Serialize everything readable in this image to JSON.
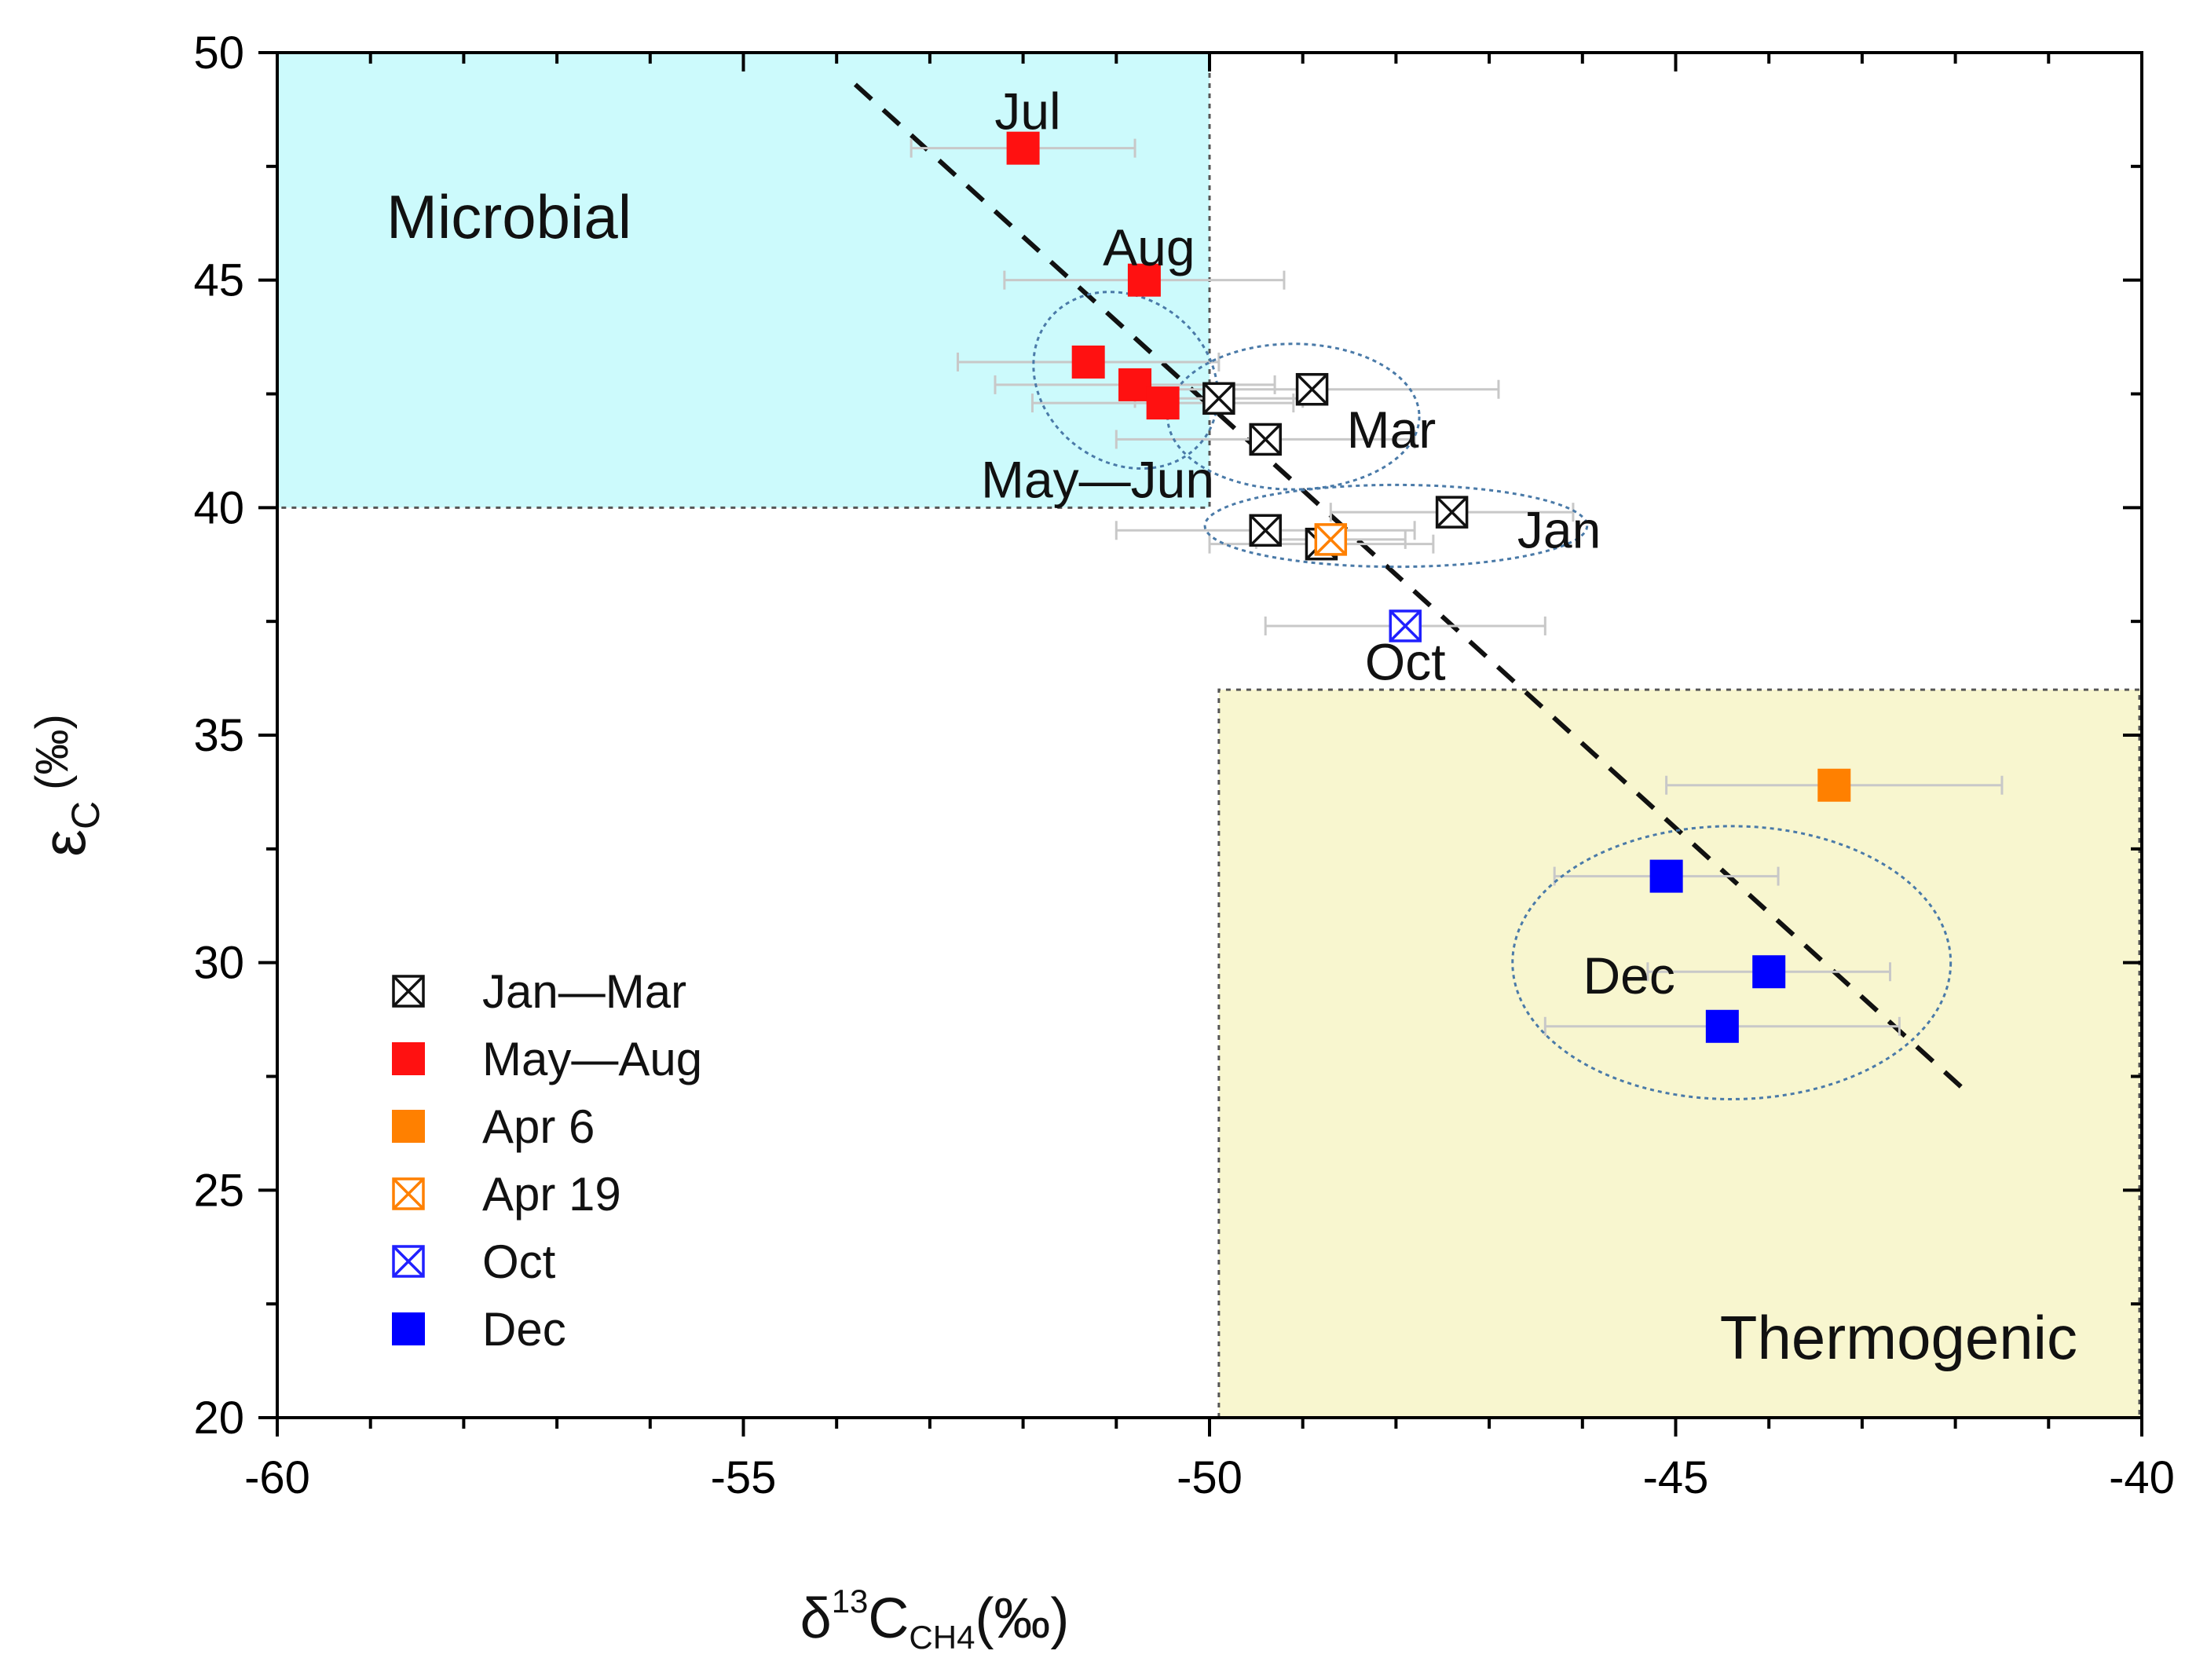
{
  "chart_data": {
    "type": "scatter",
    "title": "",
    "xlabel": {
      "prefix": "δ",
      "sup": "13",
      "main": "C",
      "sub": "CH4",
      "unit": "(‰)"
    },
    "ylabel": {
      "main": "ε",
      "sub": "C",
      "unit": "(‰)"
    },
    "xlim": [
      -60,
      -40
    ],
    "ylim": [
      20,
      50
    ],
    "xticks": [
      -60,
      -55,
      -50,
      -45,
      -40
    ],
    "yticks": [
      20,
      25,
      30,
      35,
      40,
      45,
      50
    ],
    "x_tick_labels": [
      "-60",
      "-55",
      "-50",
      "-45",
      "-40"
    ],
    "y_tick_labels": [
      "20",
      "25",
      "30",
      "35",
      "40",
      "45",
      "50"
    ],
    "regions": [
      {
        "name": "Microbial",
        "x_range": [
          -60,
          -50
        ],
        "y_range": [
          40,
          50
        ],
        "color": "#ccfafc"
      },
      {
        "name": "Thermogenic",
        "x_range": [
          -49.9,
          -40
        ],
        "y_range": [
          20,
          36
        ],
        "color": "#f8f6cf"
      }
    ],
    "trend_line": {
      "x": [
        -53.8,
        -41.9
      ],
      "y": [
        49.3,
        27.2
      ],
      "style": "dashed"
    },
    "series": [
      {
        "name": "Jan—Mar",
        "marker": "xbox",
        "color": "#111111",
        "points": [
          {
            "x": -49.9,
            "y": 42.4,
            "xerr": 0.9
          },
          {
            "x": -48.9,
            "y": 42.6,
            "xerr": 2.0
          },
          {
            "x": -49.4,
            "y": 41.5,
            "xerr": 1.6
          },
          {
            "x": -47.4,
            "y": 39.9,
            "xerr": 1.3
          },
          {
            "x": -49.4,
            "y": 39.5,
            "xerr": 1.6
          },
          {
            "x": -48.8,
            "y": 39.2,
            "xerr": 1.2
          }
        ]
      },
      {
        "name": "May—Aug",
        "marker": "square",
        "color": "#ff1111",
        "points": [
          {
            "x": -52.0,
            "y": 47.9,
            "xerr": 1.2
          },
          {
            "x": -50.7,
            "y": 45.0,
            "xerr": 1.5
          },
          {
            "x": -51.3,
            "y": 43.2,
            "xerr": 1.4
          },
          {
            "x": -50.8,
            "y": 42.7,
            "xerr": 1.5
          },
          {
            "x": -50.5,
            "y": 42.3,
            "xerr": 1.4
          }
        ]
      },
      {
        "name": "Apr 6",
        "marker": "square",
        "color": "#ff8000",
        "points": [
          {
            "x": -43.3,
            "y": 33.9,
            "xerr": 1.8
          }
        ]
      },
      {
        "name": "Apr 19",
        "marker": "xbox",
        "color": "#ff8000",
        "points": [
          {
            "x": -48.7,
            "y": 39.3,
            "xerr": 0.8
          }
        ]
      },
      {
        "name": "Oct",
        "marker": "xbox",
        "color": "#2020ff",
        "points": [
          {
            "x": -47.9,
            "y": 37.4,
            "xerr": 1.5
          }
        ]
      },
      {
        "name": "Dec",
        "marker": "square",
        "color": "#0000ff",
        "points": [
          {
            "x": -45.1,
            "y": 31.9,
            "xerr": 1.2
          },
          {
            "x": -44.0,
            "y": 29.8,
            "xerr": 1.3
          },
          {
            "x": -44.5,
            "y": 28.6,
            "xerr": 1.9
          }
        ]
      }
    ],
    "ellipses": [
      {
        "name": "May—Jun",
        "cx": -50.9,
        "cy": 42.8,
        "rx": 1.05,
        "ry": 1.8,
        "rotate": 38
      },
      {
        "name": "Mar",
        "cx": -49.1,
        "cy": 42.0,
        "rx": 1.35,
        "ry": 1.6
      },
      {
        "name": "Jan",
        "cx": -48.0,
        "cy": 39.6,
        "rx": 2.05,
        "ry": 0.9
      },
      {
        "name": "Dec",
        "cx": -44.4,
        "cy": 30.0,
        "rx": 2.35,
        "ry": 3.0
      }
    ],
    "annotations": [
      {
        "text": "Jul",
        "x": -51.95,
        "y": 48.7
      },
      {
        "text": "Aug",
        "x": -50.65,
        "y": 45.7
      },
      {
        "text": "May—Jun",
        "x": -51.2,
        "y": 40.6
      },
      {
        "text": "Mar",
        "x": -48.05,
        "y": 41.7
      },
      {
        "text": "Jan",
        "x": -46.25,
        "y": 39.5
      },
      {
        "text": "Oct",
        "x": -47.9,
        "y": 36.6
      },
      {
        "text": "Dec",
        "x": -45.5,
        "y": 29.7
      }
    ],
    "legend": {
      "position": "bottom-left",
      "entries": [
        {
          "label": "Jan—Mar",
          "marker": "xbox",
          "color": "#111111"
        },
        {
          "label": "May—Aug",
          "marker": "square",
          "color": "#ff1111"
        },
        {
          "label": "Apr 6",
          "marker": "square",
          "color": "#ff8000"
        },
        {
          "label": "Apr 19",
          "marker": "xbox",
          "color": "#ff8000"
        },
        {
          "label": "Oct",
          "marker": "xbox",
          "color": "#2020ff"
        },
        {
          "label": "Dec",
          "marker": "square",
          "color": "#0000ff"
        }
      ]
    },
    "errorbar_color": "#c8c8c8",
    "ellipse_color": "#4a7aa8"
  }
}
